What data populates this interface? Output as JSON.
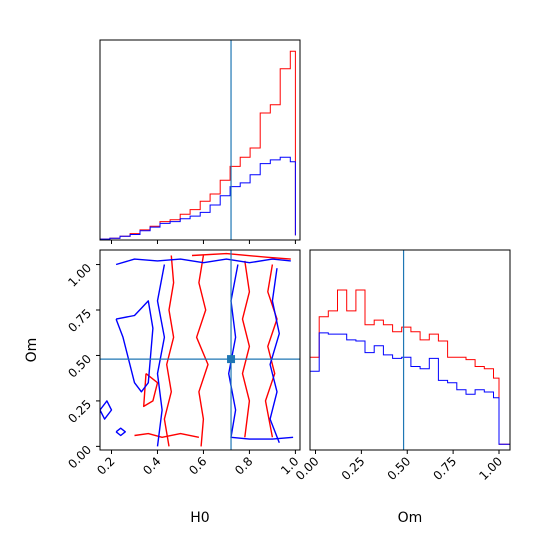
{
  "chart_data": {
    "type": "corner",
    "parameters": [
      "H0",
      "Om"
    ],
    "truth": {
      "H0": 0.72,
      "Om": 0.48
    },
    "colors": {
      "run_a": "#ff0000",
      "run_b": "#0000ff",
      "truth": "#1f77b4"
    },
    "xlabel_h0": "H0",
    "xlabel_om": "Om",
    "ylabel_om": "Om",
    "h0_ticks": [
      "0.2",
      "0.4",
      "0.6",
      "0.8",
      "1.0"
    ],
    "om_ticks": [
      "0.00",
      "0.25",
      "0.50",
      "0.75",
      "1.00"
    ],
    "xlim_h0": [
      0.15,
      1.02
    ],
    "xlim_om": [
      -0.03,
      1.06
    ],
    "ylim_om": [
      -0.02,
      1.08
    ],
    "h0_hist": {
      "bin_edges": [
        0.15,
        0.193,
        0.237,
        0.281,
        0.324,
        0.368,
        0.411,
        0.455,
        0.499,
        0.542,
        0.586,
        0.629,
        0.673,
        0.716,
        0.76,
        0.803,
        0.847,
        0.891,
        0.934,
        0.978,
        1.0
      ],
      "series": [
        {
          "values": [
            1,
            2,
            4,
            7,
            11,
            15,
            20,
            22,
            28,
            33,
            42,
            50,
            65,
            80,
            90,
            100,
            138,
            147,
            186,
            205,
            5
          ]
        },
        {
          "values": [
            1,
            2,
            4,
            6,
            10,
            14,
            18,
            20,
            23,
            26,
            30,
            38,
            48,
            58,
            62,
            71,
            83,
            87,
            90,
            85,
            5
          ]
        }
      ]
    },
    "om_hist": {
      "bin_edges": [
        -0.03,
        0.02,
        0.07,
        0.12,
        0.17,
        0.22,
        0.27,
        0.32,
        0.37,
        0.42,
        0.47,
        0.52,
        0.57,
        0.62,
        0.67,
        0.72,
        0.77,
        0.82,
        0.87,
        0.92,
        0.97,
        1.0,
        1.06
      ],
      "series": [
        {
          "values": [
            80,
            115,
            120,
            138,
            120,
            138,
            108,
            112,
            108,
            102,
            106,
            102,
            95,
            100,
            94,
            80,
            80,
            78,
            72,
            70,
            62,
            5
          ]
        },
        {
          "values": [
            68,
            101,
            100,
            100,
            95,
            94,
            84,
            90,
            82,
            79,
            80,
            72,
            70,
            79,
            60,
            58,
            52,
            48,
            52,
            50,
            45,
            5
          ]
        }
      ]
    },
    "contours_2d": {
      "series": [
        {
          "paths": [
            [
              [
                0.46,
                1.05
              ],
              [
                0.47,
                0.9
              ],
              [
                0.45,
                0.75
              ],
              [
                0.47,
                0.6
              ],
              [
                0.44,
                0.45
              ],
              [
                0.46,
                0.3
              ],
              [
                0.43,
                0.15
              ],
              [
                0.45,
                0.0
              ]
            ],
            [
              [
                0.6,
                1.05
              ],
              [
                0.58,
                0.9
              ],
              [
                0.61,
                0.75
              ],
              [
                0.57,
                0.6
              ],
              [
                0.62,
                0.45
              ],
              [
                0.58,
                0.3
              ],
              [
                0.6,
                0.15
              ],
              [
                0.59,
                0.0
              ]
            ],
            [
              [
                0.35,
                0.4
              ],
              [
                0.4,
                0.35
              ],
              [
                0.38,
                0.25
              ],
              [
                0.34,
                0.22
              ],
              [
                0.35,
                0.4
              ]
            ],
            [
              [
                0.78,
                1.02
              ],
              [
                0.8,
                0.85
              ],
              [
                0.77,
                0.7
              ],
              [
                0.8,
                0.55
              ],
              [
                0.77,
                0.4
              ],
              [
                0.8,
                0.25
              ],
              [
                0.78,
                0.05
              ]
            ],
            [
              [
                0.9,
                1.0
              ],
              [
                0.88,
                0.85
              ],
              [
                0.92,
                0.7
              ],
              [
                0.88,
                0.55
              ],
              [
                0.91,
                0.4
              ],
              [
                0.87,
                0.25
              ],
              [
                0.9,
                0.05
              ]
            ],
            [
              [
                0.55,
                1.05
              ],
              [
                0.7,
                1.06
              ],
              [
                0.88,
                1.04
              ],
              [
                0.98,
                1.03
              ]
            ],
            [
              [
                0.3,
                0.06
              ],
              [
                0.36,
                0.07
              ],
              [
                0.42,
                0.05
              ],
              [
                0.5,
                0.07
              ],
              [
                0.58,
                0.05
              ]
            ]
          ]
        },
        {
          "paths": [
            [
              [
                0.22,
                1.0
              ],
              [
                0.3,
                1.03
              ],
              [
                0.4,
                1.02
              ],
              [
                0.5,
                1.03
              ],
              [
                0.6,
                1.01
              ],
              [
                0.7,
                1.03
              ],
              [
                0.8,
                1.01
              ],
              [
                0.9,
                1.03
              ],
              [
                0.98,
                1.02
              ]
            ],
            [
              [
                0.22,
                0.7
              ],
              [
                0.3,
                0.72
              ],
              [
                0.36,
                0.8
              ],
              [
                0.38,
                0.65
              ],
              [
                0.37,
                0.5
              ],
              [
                0.36,
                0.35
              ],
              [
                0.33,
                0.3
              ],
              [
                0.3,
                0.35
              ],
              [
                0.25,
                0.6
              ],
              [
                0.22,
                0.7
              ]
            ],
            [
              [
                0.4,
                0.0
              ],
              [
                0.42,
                0.2
              ],
              [
                0.4,
                0.4
              ],
              [
                0.43,
                0.6
              ],
              [
                0.4,
                0.8
              ],
              [
                0.43,
                1.0
              ]
            ],
            [
              [
                0.75,
                1.0
              ],
              [
                0.72,
                0.8
              ],
              [
                0.74,
                0.6
              ],
              [
                0.71,
                0.4
              ],
              [
                0.74,
                0.2
              ],
              [
                0.72,
                0.05
              ],
              [
                0.8,
                0.04
              ],
              [
                0.9,
                0.04
              ],
              [
                0.99,
                0.05
              ]
            ],
            [
              [
                0.92,
                0.98
              ],
              [
                0.9,
                0.8
              ],
              [
                0.93,
                0.62
              ],
              [
                0.89,
                0.45
              ],
              [
                0.92,
                0.3
              ],
              [
                0.89,
                0.15
              ],
              [
                0.93,
                0.02
              ]
            ],
            [
              [
                0.15,
                0.2
              ],
              [
                0.18,
                0.25
              ],
              [
                0.2,
                0.2
              ],
              [
                0.17,
                0.15
              ],
              [
                0.15,
                0.2
              ]
            ],
            [
              [
                0.22,
                0.08
              ],
              [
                0.24,
                0.1
              ],
              [
                0.26,
                0.08
              ],
              [
                0.24,
                0.06
              ],
              [
                0.22,
                0.08
              ]
            ]
          ]
        }
      ]
    }
  }
}
